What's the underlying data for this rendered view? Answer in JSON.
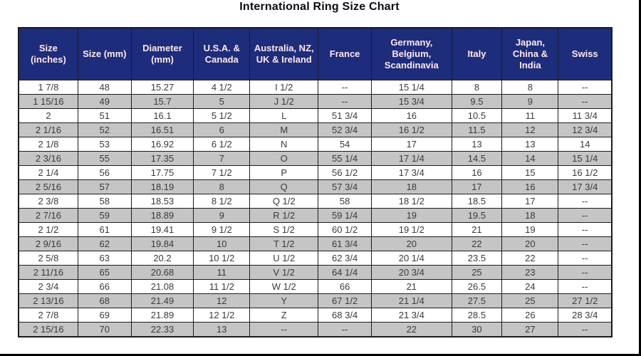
{
  "title": "International Ring Size Chart",
  "colors": {
    "header_bg": "#1e2c7c",
    "header_text": "#ffe9ec",
    "row_bg": "#ffffff",
    "row_alt_bg": "#c5c5c5",
    "cell_text": "#3a3a3a",
    "grid": "#1c1c1c",
    "title_text": "#0b0b14"
  },
  "chart_data": {
    "type": "table",
    "title": "International Ring Size Chart",
    "columns": [
      "Size (inches)",
      "Size (mm)",
      "Diameter (mm)",
      "U.S.A. & Canada",
      "Australia, NZ, UK & Ireland",
      "France",
      "Germany, Belgium, Scandinavia",
      "Italy",
      "Japan, China & India",
      "Swiss"
    ],
    "rows": [
      [
        "1 7/8",
        "48",
        "15.27",
        "4 1/2",
        "I 1/2",
        "--",
        "15 1/4",
        "8",
        "8",
        "--"
      ],
      [
        "1 15/16",
        "49",
        "15.7",
        "5",
        "J 1/2",
        "--",
        "15 3/4",
        "9.5",
        "9",
        "--"
      ],
      [
        "2",
        "51",
        "16.1",
        "5 1/2",
        "L",
        "51 3/4",
        "16",
        "10.5",
        "11",
        "11 3/4"
      ],
      [
        "2 1/16",
        "52",
        "16.51",
        "6",
        "M",
        "52 3/4",
        "16 1/2",
        "11.5",
        "12",
        "12 3/4"
      ],
      [
        "2 1/8",
        "53",
        "16.92",
        "6 1/2",
        "N",
        "54",
        "17",
        "13",
        "13",
        "14"
      ],
      [
        "2 3/16",
        "55",
        "17.35",
        "7",
        "O",
        "55 1/4",
        "17 1/4",
        "14.5",
        "14",
        "15 1/4"
      ],
      [
        "2 1/4",
        "56",
        "17.75",
        "7 1/2",
        "P",
        "56 1/2",
        "17 3/4",
        "16",
        "15",
        "16 1/2"
      ],
      [
        "2 5/16",
        "57",
        "18.19",
        "8",
        "Q",
        "57 3/4",
        "18",
        "17",
        "16",
        "17 3/4"
      ],
      [
        "2 3/8",
        "58",
        "18.53",
        "8 1/2",
        "Q 1/2",
        "58",
        "18 1/2",
        "18.5",
        "17",
        "--"
      ],
      [
        "2 7/16",
        "59",
        "18.89",
        "9",
        "R 1/2",
        "59 1/4",
        "19",
        "19.5",
        "18",
        "--"
      ],
      [
        "2 1/2",
        "61",
        "19.41",
        "9 1/2",
        "S 1/2",
        "60 1/2",
        "19 1/2",
        "21",
        "19",
        "--"
      ],
      [
        "2 9/16",
        "62",
        "19.84",
        "10",
        "T 1/2",
        "61 3/4",
        "20",
        "22",
        "20",
        "--"
      ],
      [
        "2 5/8",
        "63",
        "20.2",
        "10 1/2",
        "U 1/2",
        "62 3/4",
        "20 1/4",
        "23.5",
        "22",
        "--"
      ],
      [
        "2 11/16",
        "65",
        "20.68",
        "11",
        "V 1/2",
        "64 1/4",
        "20 3/4",
        "25",
        "23",
        "--"
      ],
      [
        "2 3/4",
        "66",
        "21.08",
        "11 1/2",
        "W 1/2",
        "66",
        "21",
        "26.5",
        "24",
        "--"
      ],
      [
        "2 13/16",
        "68",
        "21.49",
        "12",
        "Y",
        "67 1/2",
        "21 1/4",
        "27.5",
        "25",
        "27 1/2"
      ],
      [
        "2 7/8",
        "69",
        "21.89",
        "12 1/2",
        "Z",
        "68 3/4",
        "21 3/4",
        "28.5",
        "26",
        "28 3/4"
      ],
      [
        "2 15/16",
        "70",
        "22.33",
        "13",
        "--",
        "--",
        "22",
        "30",
        "27",
        "--"
      ]
    ]
  }
}
